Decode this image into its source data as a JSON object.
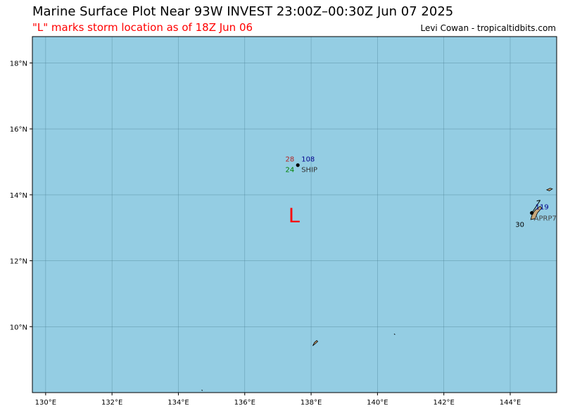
{
  "header": {
    "title": "Marine Surface Plot Near 93W INVEST 23:00Z–00:30Z Jun 07 2025",
    "subtitle": "\"L\" marks storm location as of 18Z Jun 06",
    "credit": "Levi Cowan - tropicaltidbits.com"
  },
  "map": {
    "ocean_color": "#94cde3",
    "land_color": "#c9a77a",
    "grid_color": "#4a7f93",
    "lon_range": [
      129.6,
      145.4
    ],
    "lat_range": [
      8.0,
      18.8
    ],
    "lon_ticks": [
      "130°E",
      "132°E",
      "134°E",
      "136°E",
      "138°E",
      "140°E",
      "142°E",
      "144°E"
    ],
    "lat_ticks": [
      "10°N",
      "12°N",
      "14°N",
      "16°N",
      "18°N"
    ],
    "storm_marker": {
      "label": "L",
      "lon": 137.5,
      "lat": 13.4,
      "color": "#ff0000"
    },
    "stations": [
      {
        "id": "SHIP",
        "lon": 137.6,
        "lat": 14.9,
        "temp": "28",
        "dewpoint": "24",
        "pressure": "108",
        "temp_color": "#b22222",
        "dew_color": "#008000",
        "pressure_color": "#00008b"
      },
      {
        "id": "APRP7",
        "lon": 144.65,
        "lat": 13.45,
        "temp": "30",
        "pressure": "119",
        "temp_color": "#000000",
        "pressure_color": "#00008b"
      }
    ]
  }
}
